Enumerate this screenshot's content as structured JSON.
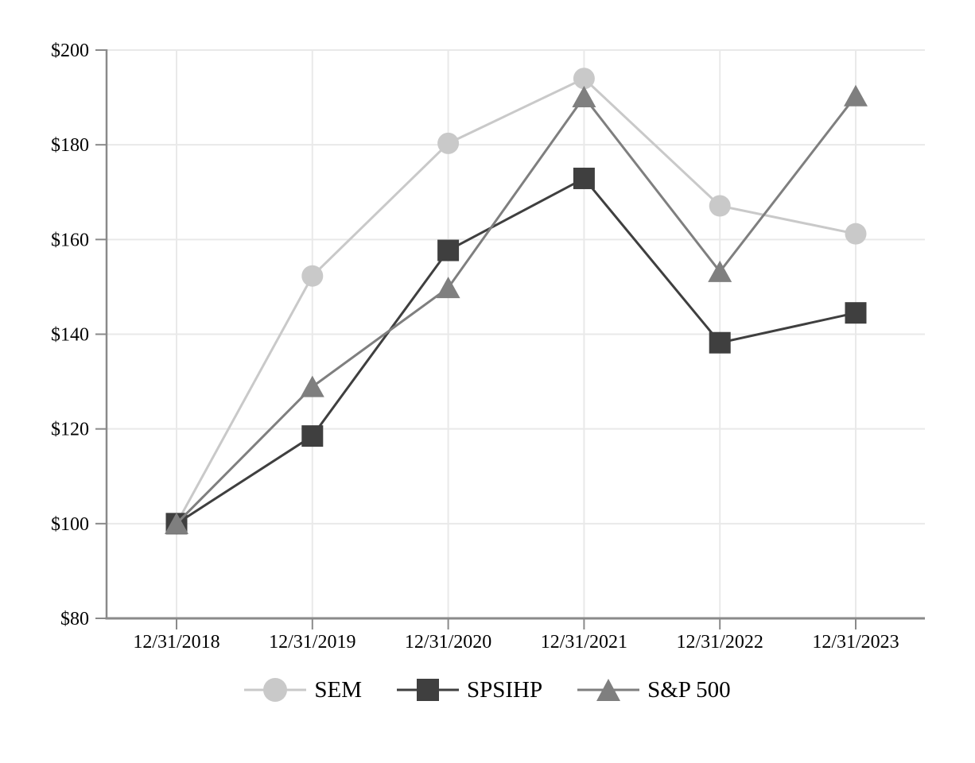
{
  "chart_data": {
    "type": "line",
    "title": "",
    "xlabel": "",
    "ylabel": "",
    "x_categories": [
      "12/31/2018",
      "12/31/2019",
      "12/31/2020",
      "12/31/2021",
      "12/31/2022",
      "12/31/2023"
    ],
    "series": [
      {
        "name": "SEM",
        "marker": "circle",
        "color": "#c9c9c9",
        "values": [
          100.0,
          152.3,
          180.3,
          194.0,
          167.1,
          161.2
        ]
      },
      {
        "name": "SPSIHP",
        "marker": "square",
        "color": "#3f3f3f",
        "values": [
          100.0,
          118.5,
          157.7,
          172.9,
          138.2,
          144.5
        ]
      },
      {
        "name": "S&P 500",
        "marker": "triangle",
        "color": "#7f7f7f",
        "values": [
          100.0,
          128.9,
          149.8,
          190.1,
          153.2,
          190.3
        ]
      }
    ],
    "y_axis": {
      "tick_values": [
        80,
        100,
        120,
        140,
        160,
        180,
        200
      ],
      "tick_labels": [
        "$80",
        "$100",
        "$120",
        "$140",
        "$160",
        "$180",
        "$200"
      ],
      "ylim": [
        80,
        200
      ],
      "currency_prefix": "$"
    },
    "grid": "on",
    "legend_position": "bottom",
    "colors": {
      "grid": "#e9e9e9",
      "axis": "#8a8a8a",
      "text": "#000000",
      "background": "#ffffff"
    }
  }
}
